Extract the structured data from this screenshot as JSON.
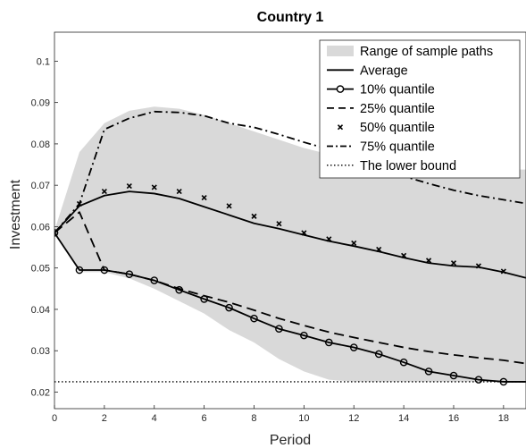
{
  "chart_data": {
    "type": "line",
    "title": "Country 1",
    "xlabel": "Period",
    "ylabel": "Investment",
    "xlim": [
      0,
      18.9
    ],
    "ylim": [
      0.016,
      0.107
    ],
    "xticks": [
      0,
      2,
      4,
      6,
      8,
      10,
      12,
      14,
      16,
      18
    ],
    "yticks": [
      0.02,
      0.03,
      0.04,
      0.05,
      0.06,
      0.07,
      0.08,
      0.09,
      0.1
    ],
    "ytick_labels": [
      "0.02",
      "0.03",
      "0.04",
      "0.05",
      "0.06",
      "0.07",
      "0.08",
      "0.09",
      "0.1"
    ],
    "grid": false,
    "legend_position": "top-right",
    "legend": [
      "Range of sample paths",
      "Average",
      "10% quantile",
      "25% quantile",
      "50% quantile",
      "75% quantile",
      "The lower bound"
    ],
    "range_band": {
      "x": [
        0,
        1,
        2,
        3,
        4,
        5,
        6,
        7,
        8,
        9,
        10,
        11,
        12,
        13,
        14,
        15,
        16,
        17,
        18,
        18.9
      ],
      "upper": [
        0.059,
        0.078,
        0.085,
        0.088,
        0.089,
        0.0885,
        0.087,
        0.085,
        0.083,
        0.081,
        0.079,
        0.0775,
        0.0765,
        0.0755,
        0.075,
        0.0745,
        0.074,
        0.0738,
        0.0738,
        0.0738
      ],
      "lower": [
        0.059,
        0.049,
        0.049,
        0.0475,
        0.045,
        0.042,
        0.039,
        0.035,
        0.032,
        0.028,
        0.025,
        0.023,
        0.0225,
        0.0225,
        0.0225,
        0.0225,
        0.0225,
        0.0225,
        0.0225,
        0.0225
      ]
    },
    "lower_bound": 0.0225,
    "series": [
      {
        "name": "Average",
        "style": "solid",
        "x": [
          0,
          1,
          2,
          3,
          4,
          5,
          6,
          7,
          8,
          9,
          10,
          11,
          12,
          13,
          14,
          15,
          16,
          17,
          18,
          18.9
        ],
        "values": [
          0.0585,
          0.065,
          0.0675,
          0.0685,
          0.068,
          0.0668,
          0.0648,
          0.0628,
          0.0608,
          0.0595,
          0.058,
          0.0565,
          0.0553,
          0.054,
          0.0525,
          0.0512,
          0.0505,
          0.0502,
          0.049,
          0.0476
        ]
      },
      {
        "name": "10% quantile",
        "style": "solid-circle",
        "x": [
          0,
          1,
          2,
          3,
          4,
          5,
          6,
          7,
          8,
          9,
          10,
          11,
          12,
          13,
          14,
          15,
          16,
          17,
          18,
          18.9
        ],
        "values": [
          0.0585,
          0.0495,
          0.0495,
          0.0485,
          0.047,
          0.0447,
          0.0425,
          0.0404,
          0.0378,
          0.0353,
          0.0337,
          0.032,
          0.0308,
          0.0292,
          0.0272,
          0.025,
          0.024,
          0.023,
          0.0225,
          0.0225
        ]
      },
      {
        "name": "25% quantile",
        "style": "dashed",
        "x": [
          0,
          1,
          2,
          3,
          4,
          5,
          6,
          7,
          8,
          9,
          10,
          11,
          12,
          13,
          14,
          15,
          16,
          17,
          18,
          18.9
        ],
        "values": [
          0.0585,
          0.0635,
          0.0495,
          0.0485,
          0.047,
          0.045,
          0.0433,
          0.0417,
          0.0398,
          0.0378,
          0.0361,
          0.0345,
          0.0332,
          0.032,
          0.0308,
          0.0298,
          0.029,
          0.0283,
          0.0277,
          0.0269
        ]
      },
      {
        "name": "50% quantile",
        "style": "x-marker",
        "x": [
          0,
          1,
          2,
          3,
          4,
          5,
          6,
          7,
          8,
          9,
          10,
          11,
          12,
          13,
          14,
          15,
          16,
          17,
          18
        ],
        "values": [
          0.0585,
          0.0655,
          0.0685,
          0.0698,
          0.0695,
          0.0685,
          0.067,
          0.065,
          0.0625,
          0.0607,
          0.0585,
          0.057,
          0.056,
          0.0545,
          0.053,
          0.0518,
          0.0512,
          0.0505,
          0.0492
        ]
      },
      {
        "name": "75% quantile",
        "style": "dashdot",
        "x": [
          0,
          1,
          2,
          3,
          4,
          5,
          6,
          7,
          8,
          9,
          10,
          11,
          12,
          13,
          14,
          15,
          16,
          17,
          18,
          18.9
        ],
        "values": [
          0.0585,
          0.0655,
          0.0835,
          0.0862,
          0.0878,
          0.0876,
          0.0868,
          0.085,
          0.084,
          0.0823,
          0.0804,
          0.0787,
          0.0765,
          0.0743,
          0.0722,
          0.0704,
          0.0688,
          0.0675,
          0.0665,
          0.0656
        ]
      }
    ]
  }
}
